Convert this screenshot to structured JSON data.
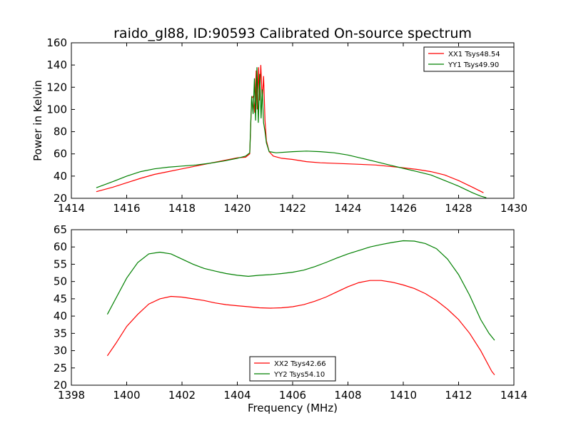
{
  "chart_data": [
    {
      "type": "line",
      "title": "raido_gl88, ID:90593 Calibrated On-source spectrum",
      "xlabel": "",
      "ylabel": "Power in Kelvin",
      "xlim": [
        1414,
        1430
      ],
      "ylim": [
        20,
        160
      ],
      "xticks": [
        "1414",
        "1416",
        "1418",
        "1420",
        "1422",
        "1424",
        "1426",
        "1428",
        "1430"
      ],
      "yticks": [
        "20",
        "40",
        "60",
        "80",
        "100",
        "120",
        "140",
        "160"
      ],
      "legend_position": "top-right",
      "series": [
        {
          "name": "XX1 Tsys48.54",
          "color": "#ff0000",
          "points": [
            [
              1414.9,
              26
            ],
            [
              1415.5,
              30
            ],
            [
              1416,
              34
            ],
            [
              1416.5,
              38
            ],
            [
              1417,
              41.5
            ],
            [
              1417.5,
              44
            ],
            [
              1418,
              46.5
            ],
            [
              1418.5,
              49
            ],
            [
              1419,
              51.5
            ],
            [
              1419.5,
              54
            ],
            [
              1420,
              56.5
            ],
            [
              1420.3,
              57
            ],
            [
              1420.45,
              60
            ],
            [
              1420.52,
              110
            ],
            [
              1420.58,
              112
            ],
            [
              1420.63,
              97
            ],
            [
              1420.68,
              135
            ],
            [
              1420.72,
              100
            ],
            [
              1420.77,
              138
            ],
            [
              1420.8,
              108
            ],
            [
              1420.85,
              140
            ],
            [
              1420.9,
              108
            ],
            [
              1420.95,
              130
            ],
            [
              1421,
              90
            ],
            [
              1421.05,
              72
            ],
            [
              1421.15,
              62
            ],
            [
              1421.3,
              58
            ],
            [
              1421.6,
              56
            ],
            [
              1422,
              55
            ],
            [
              1422.5,
              53
            ],
            [
              1423,
              52
            ],
            [
              1424,
              51
            ],
            [
              1425,
              50
            ],
            [
              1426,
              47.5
            ],
            [
              1426.5,
              46
            ],
            [
              1427,
              44
            ],
            [
              1427.5,
              41
            ],
            [
              1428,
              36
            ],
            [
              1428.5,
              30
            ],
            [
              1428.9,
              25
            ]
          ]
        },
        {
          "name": "YY1 Tsys49.90",
          "color": "#008000",
          "points": [
            [
              1414.9,
              29.5
            ],
            [
              1415.5,
              35
            ],
            [
              1416,
              40
            ],
            [
              1416.5,
              44
            ],
            [
              1417,
              46.5
            ],
            [
              1417.5,
              48
            ],
            [
              1418,
              49
            ],
            [
              1418.5,
              50
            ],
            [
              1419,
              51.5
            ],
            [
              1419.5,
              53.5
            ],
            [
              1420,
              56
            ],
            [
              1420.3,
              58
            ],
            [
              1420.45,
              61
            ],
            [
              1420.52,
              112
            ],
            [
              1420.57,
              96
            ],
            [
              1420.62,
              128
            ],
            [
              1420.66,
              90
            ],
            [
              1420.71,
              138
            ],
            [
              1420.76,
              88
            ],
            [
              1420.81,
              132
            ],
            [
              1420.86,
              92
            ],
            [
              1420.9,
              118
            ],
            [
              1420.95,
              88
            ],
            [
              1421,
              80
            ],
            [
              1421.05,
              70
            ],
            [
              1421.15,
              62
            ],
            [
              1421.4,
              61
            ],
            [
              1422,
              62
            ],
            [
              1422.5,
              62.5
            ],
            [
              1423,
              62
            ],
            [
              1423.5,
              61
            ],
            [
              1424,
              59
            ],
            [
              1424.5,
              56
            ],
            [
              1425,
              53
            ],
            [
              1425.5,
              50
            ],
            [
              1426,
              47
            ],
            [
              1426.5,
              44
            ],
            [
              1427,
              41
            ],
            [
              1427.5,
              36
            ],
            [
              1428,
              31
            ],
            [
              1428.5,
              25
            ],
            [
              1428.8,
              22
            ],
            [
              1429,
              20.5
            ]
          ]
        }
      ]
    },
    {
      "type": "line",
      "title": "",
      "xlabel": "Frequency (MHz)",
      "ylabel": "",
      "xlim": [
        1398,
        1414
      ],
      "ylim": [
        20,
        65
      ],
      "xticks": [
        "1398",
        "1400",
        "1402",
        "1404",
        "1406",
        "1408",
        "1410",
        "1412",
        "1414"
      ],
      "yticks": [
        "20",
        "25",
        "30",
        "35",
        "40",
        "45",
        "50",
        "55",
        "60",
        "65"
      ],
      "legend_position": "lower-center",
      "series": [
        {
          "name": "XX2 Tsys42.66",
          "color": "#ff0000",
          "points": [
            [
              1399.3,
              28.5
            ],
            [
              1399.6,
              32
            ],
            [
              1400,
              37
            ],
            [
              1400.4,
              40.5
            ],
            [
              1400.8,
              43.5
            ],
            [
              1401.2,
              45
            ],
            [
              1401.6,
              45.7
            ],
            [
              1402,
              45.5
            ],
            [
              1402.4,
              45
            ],
            [
              1402.8,
              44.5
            ],
            [
              1403.2,
              43.8
            ],
            [
              1403.6,
              43.3
            ],
            [
              1404,
              43
            ],
            [
              1404.4,
              42.7
            ],
            [
              1404.8,
              42.4
            ],
            [
              1405.2,
              42.3
            ],
            [
              1405.6,
              42.4
            ],
            [
              1406,
              42.7
            ],
            [
              1406.4,
              43.3
            ],
            [
              1406.8,
              44.3
            ],
            [
              1407.2,
              45.5
            ],
            [
              1407.6,
              47
            ],
            [
              1408,
              48.5
            ],
            [
              1408.4,
              49.7
            ],
            [
              1408.8,
              50.3
            ],
            [
              1409.2,
              50.3
            ],
            [
              1409.6,
              49.8
            ],
            [
              1410,
              49
            ],
            [
              1410.4,
              48
            ],
            [
              1410.8,
              46.5
            ],
            [
              1411.2,
              44.5
            ],
            [
              1411.6,
              42
            ],
            [
              1412,
              39
            ],
            [
              1412.4,
              35
            ],
            [
              1412.8,
              30
            ],
            [
              1413.2,
              24
            ],
            [
              1413.3,
              23
            ]
          ]
        },
        {
          "name": "YY2 Tsys54.10",
          "color": "#008000",
          "points": [
            [
              1399.3,
              40.5
            ],
            [
              1399.6,
              45
            ],
            [
              1400,
              51
            ],
            [
              1400.4,
              55.5
            ],
            [
              1400.8,
              58
            ],
            [
              1401.2,
              58.5
            ],
            [
              1401.6,
              58
            ],
            [
              1402,
              56.5
            ],
            [
              1402.4,
              55
            ],
            [
              1402.8,
              53.8
            ],
            [
              1403.2,
              53
            ],
            [
              1403.6,
              52.3
            ],
            [
              1404,
              51.8
            ],
            [
              1404.4,
              51.5
            ],
            [
              1404.8,
              51.8
            ],
            [
              1405.2,
              52
            ],
            [
              1405.6,
              52.3
            ],
            [
              1406,
              52.7
            ],
            [
              1406.4,
              53.3
            ],
            [
              1406.8,
              54.3
            ],
            [
              1407.2,
              55.5
            ],
            [
              1407.6,
              56.8
            ],
            [
              1408,
              58
            ],
            [
              1408.4,
              59
            ],
            [
              1408.8,
              60
            ],
            [
              1409.2,
              60.7
            ],
            [
              1409.6,
              61.3
            ],
            [
              1410,
              61.8
            ],
            [
              1410.4,
              61.7
            ],
            [
              1410.8,
              61
            ],
            [
              1411.2,
              59.5
            ],
            [
              1411.6,
              56.5
            ],
            [
              1412,
              52
            ],
            [
              1412.4,
              46
            ],
            [
              1412.8,
              39
            ],
            [
              1413.1,
              35
            ],
            [
              1413.3,
              33
            ]
          ]
        }
      ]
    }
  ]
}
